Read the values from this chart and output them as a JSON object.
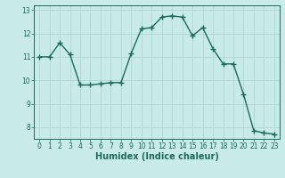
{
  "x": [
    0,
    1,
    2,
    3,
    4,
    5,
    6,
    7,
    8,
    9,
    10,
    11,
    12,
    13,
    14,
    15,
    16,
    17,
    18,
    19,
    20,
    21,
    22,
    23
  ],
  "y": [
    11.0,
    11.0,
    11.6,
    11.1,
    9.8,
    9.8,
    9.85,
    9.9,
    9.9,
    11.15,
    12.2,
    12.25,
    12.7,
    12.75,
    12.7,
    11.9,
    12.25,
    11.35,
    10.7,
    10.7,
    9.4,
    7.85,
    7.75,
    7.7
  ],
  "line_color": "#1a6b5a",
  "bg_color": "#c8eae8",
  "grid_color": "#afd6d2",
  "xlabel": "Humidex (Indice chaleur)",
  "xlim": [
    -0.5,
    23.5
  ],
  "ylim": [
    7.5,
    13.2
  ],
  "yticks": [
    8,
    9,
    10,
    11,
    12,
    13
  ],
  "xticks": [
    0,
    1,
    2,
    3,
    4,
    5,
    6,
    7,
    8,
    9,
    10,
    11,
    12,
    13,
    14,
    15,
    16,
    17,
    18,
    19,
    20,
    21,
    22,
    23
  ],
  "marker": "+",
  "markersize": 4,
  "linewidth": 1.0,
  "tick_fontsize": 5.5,
  "xlabel_fontsize": 7.0
}
